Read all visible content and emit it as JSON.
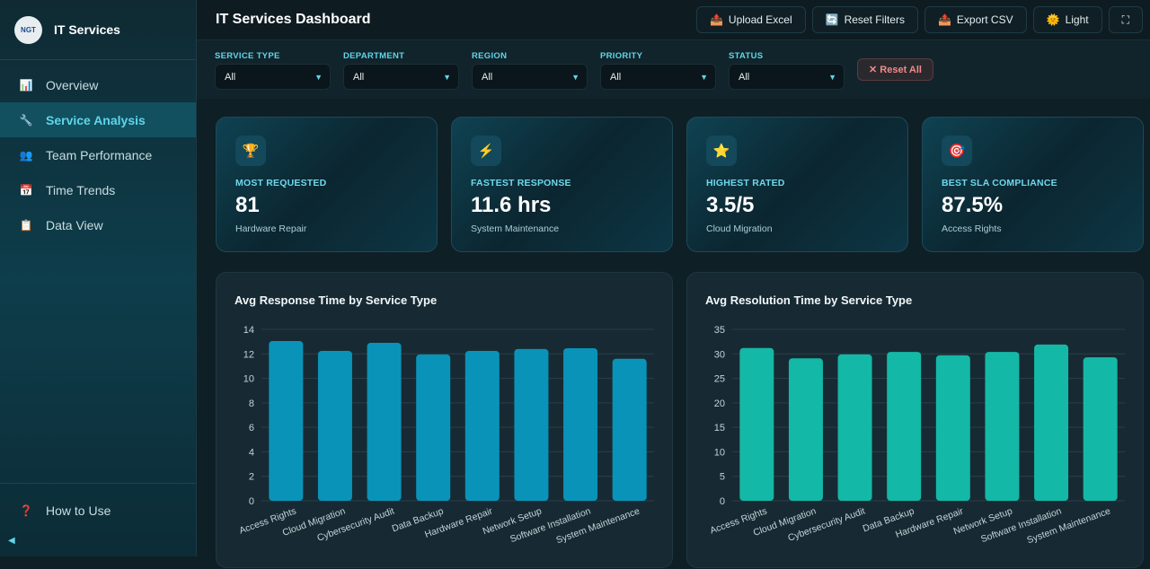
{
  "sidebar": {
    "brand": "IT Services",
    "logo_text": "NGT",
    "items": [
      {
        "label": "Overview",
        "icon": "bar-chart-icon",
        "glyph": "📊"
      },
      {
        "label": "Service Analysis",
        "icon": "wrench-icon",
        "glyph": "🔧"
      },
      {
        "label": "Team Performance",
        "icon": "people-icon",
        "glyph": "👥"
      },
      {
        "label": "Time Trends",
        "icon": "calendar-icon",
        "glyph": "📅"
      },
      {
        "label": "Data View",
        "icon": "clipboard-icon",
        "glyph": "📋"
      }
    ],
    "active": "Service Analysis",
    "help": "How to Use",
    "help_glyph": "❓",
    "collapse_glyph": "◀"
  },
  "header": {
    "title": "IT Services Dashboard",
    "buttons": [
      {
        "label": "Upload Excel",
        "glyph": "📤"
      },
      {
        "label": "Reset Filters",
        "glyph": "🔄"
      },
      {
        "label": "Export CSV",
        "glyph": "📤"
      },
      {
        "label": "Light",
        "glyph": "🌞"
      },
      {
        "label": "",
        "glyph": "⛶"
      }
    ]
  },
  "filters": [
    {
      "label": "SERVICE TYPE",
      "value": "All"
    },
    {
      "label": "DEPARTMENT",
      "value": "All"
    },
    {
      "label": "REGION",
      "value": "All"
    },
    {
      "label": "PRIORITY",
      "value": "All"
    },
    {
      "label": "STATUS",
      "value": "All"
    }
  ],
  "reset_all": "✕ Reset All",
  "cards": [
    {
      "glyph": "🏆",
      "label": "MOST REQUESTED",
      "value": "81",
      "sub": "Hardware Repair"
    },
    {
      "glyph": "⚡",
      "label": "FASTEST RESPONSE",
      "value": "11.6 hrs",
      "sub": "System Maintenance"
    },
    {
      "glyph": "⭐",
      "label": "HIGHEST RATED",
      "value": "3.5/5",
      "sub": "Cloud Migration"
    },
    {
      "glyph": "🎯",
      "label": "BEST SLA COMPLIANCE",
      "value": "87.5%",
      "sub": "Access Rights"
    }
  ],
  "chart_data": [
    {
      "type": "bar",
      "title": "Avg Response Time by Service Type",
      "color": "#0a93b8",
      "categories": [
        "Access Rights",
        "Cloud Migration",
        "Cybersecurity Audit",
        "Data Backup",
        "Hardware Repair",
        "Network Setup",
        "Software Installation",
        "System Maintenance"
      ],
      "values": [
        13.05,
        12.24,
        12.9,
        11.95,
        12.24,
        12.4,
        12.46,
        11.6
      ],
      "ylim": [
        0,
        14
      ],
      "yticks": [
        0,
        2,
        4,
        6,
        8,
        10,
        12,
        14
      ],
      "grid": true
    },
    {
      "type": "bar",
      "title": "Avg Resolution Time by Service Type",
      "color": "#14b8a6",
      "categories": [
        "Access Rights",
        "Cloud Migration",
        "Cybersecurity Audit",
        "Data Backup",
        "Hardware Repair",
        "Network Setup",
        "Software Installation",
        "System Maintenance"
      ],
      "values": [
        31.2,
        29.1,
        29.9,
        30.4,
        29.7,
        30.4,
        31.9,
        29.3
      ],
      "ylim": [
        0,
        35
      ],
      "yticks": [
        0,
        5,
        10,
        15,
        20,
        25,
        30,
        35
      ],
      "grid": true
    }
  ]
}
